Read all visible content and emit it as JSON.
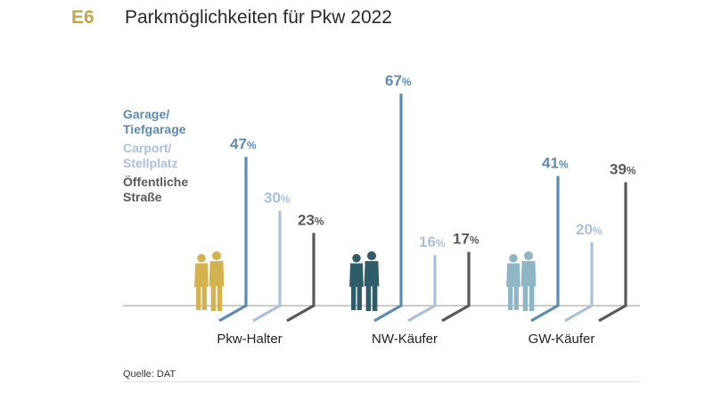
{
  "header": {
    "code": "E6",
    "title": "Parkmöglichkeiten für Pkw 2022"
  },
  "source": "Quelle: DAT",
  "colors": {
    "accent": "#c4a64a",
    "garage": "#5b8bb8",
    "carport": "#a9c1dc",
    "strasse": "#58595b",
    "halter_figure": "#d4b24f",
    "nw_figure": "#2e5c68",
    "gw_figure": "#8fb6c4",
    "baseline": "#9a9a9a"
  },
  "chart_data": {
    "type": "bar",
    "categories": [
      "Pkw-Halter",
      "NW-Käufer",
      "GW-Käufer"
    ],
    "series": [
      {
        "name": "Garage/ Tiefgarage",
        "name_lines": [
          "Garage/",
          "Tiefgarage"
        ],
        "values": [
          47,
          67,
          41
        ]
      },
      {
        "name": "Carport/ Stellplatz",
        "name_lines": [
          "Carport/",
          "Stellplatz"
        ],
        "values": [
          30,
          16,
          20
        ]
      },
      {
        "name": "Öffentliche Straße",
        "name_lines": [
          "Öffentliche",
          "Straße"
        ],
        "values": [
          23,
          17,
          39
        ]
      }
    ],
    "unit": "%",
    "ylim": [
      0,
      70
    ],
    "figure_icons": [
      "two-people-icon",
      "two-people-icon",
      "two-people-icon"
    ],
    "legend_position": "left",
    "grid": false
  }
}
